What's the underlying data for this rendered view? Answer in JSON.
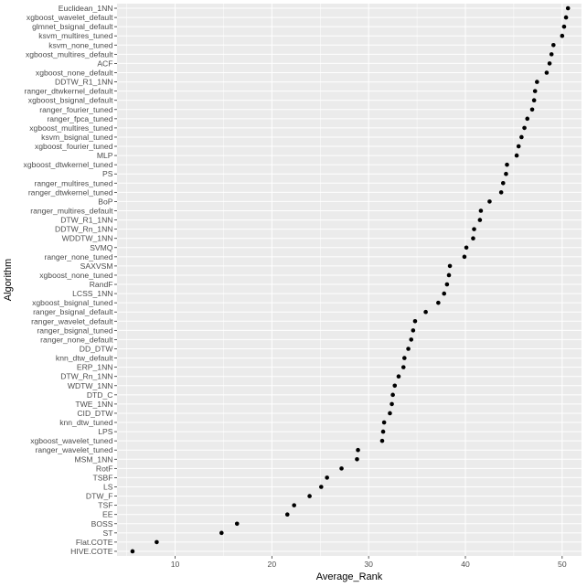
{
  "chart_data": {
    "type": "scatter",
    "xlabel": "Average_Rank",
    "ylabel": "Algorithm",
    "xlim": [
      4,
      52
    ],
    "x_ticks": [
      10,
      20,
      30,
      40,
      50
    ],
    "grid": true,
    "legend": "none",
    "colors": {
      "panel": "#ebebeb",
      "grid_major": "#ffffff",
      "point": "#000000",
      "tick_text": "#4d4d4d"
    },
    "points": [
      {
        "label": "Euclidean_1NN",
        "x": 50.6
      },
      {
        "label": "xgboost_wavelet_default",
        "x": 50.4
      },
      {
        "label": "glmnet_bsignal_default",
        "x": 50.2
      },
      {
        "label": "ksvm_multires_tuned",
        "x": 50.0
      },
      {
        "label": "ksvm_none_tuned",
        "x": 49.1
      },
      {
        "label": "xgboost_multires_default",
        "x": 48.9
      },
      {
        "label": "ACF",
        "x": 48.7
      },
      {
        "label": "xgboost_none_default",
        "x": 48.4
      },
      {
        "label": "DDTW_R1_1NN",
        "x": 47.4
      },
      {
        "label": "ranger_dtwkernel_default",
        "x": 47.2
      },
      {
        "label": "xgboost_bsignal_default",
        "x": 47.1
      },
      {
        "label": "ranger_fourier_tuned",
        "x": 46.9
      },
      {
        "label": "ranger_fpca_tuned",
        "x": 46.4
      },
      {
        "label": "xgboost_multires_tuned",
        "x": 46.1
      },
      {
        "label": "ksvm_bsignal_tuned",
        "x": 45.8
      },
      {
        "label": "xgboost_fourier_tuned",
        "x": 45.5
      },
      {
        "label": "MLP",
        "x": 45.3
      },
      {
        "label": "xgboost_dtwkernel_tuned",
        "x": 44.3
      },
      {
        "label": "PS",
        "x": 44.2
      },
      {
        "label": "ranger_multires_tuned",
        "x": 43.9
      },
      {
        "label": "ranger_dtwkernel_tuned",
        "x": 43.7
      },
      {
        "label": "BoP",
        "x": 42.5
      },
      {
        "label": "ranger_multires_default",
        "x": 41.6
      },
      {
        "label": "DTW_R1_1NN",
        "x": 41.5
      },
      {
        "label": "DDTW_Rn_1NN",
        "x": 40.9
      },
      {
        "label": "WDDTW_1NN",
        "x": 40.8
      },
      {
        "label": "SVMQ",
        "x": 40.1
      },
      {
        "label": "ranger_none_tuned",
        "x": 39.9
      },
      {
        "label": "SAXVSM",
        "x": 38.4
      },
      {
        "label": "xgboost_none_tuned",
        "x": 38.3
      },
      {
        "label": "RandF",
        "x": 38.1
      },
      {
        "label": "LCSS_1NN",
        "x": 37.8
      },
      {
        "label": "xgboost_bsignal_tuned",
        "x": 37.2
      },
      {
        "label": "ranger_bsignal_default",
        "x": 35.9
      },
      {
        "label": "ranger_wavelet_default",
        "x": 34.8
      },
      {
        "label": "ranger_bsignal_tuned",
        "x": 34.6
      },
      {
        "label": "ranger_none_default",
        "x": 34.4
      },
      {
        "label": "DD_DTW",
        "x": 34.1
      },
      {
        "label": "knn_dtw_default",
        "x": 33.7
      },
      {
        "label": "ERP_1NN",
        "x": 33.6
      },
      {
        "label": "DTW_Rn_1NN",
        "x": 33.1
      },
      {
        "label": "WDTW_1NN",
        "x": 32.7
      },
      {
        "label": "DTD_C",
        "x": 32.5
      },
      {
        "label": "TWE_1NN",
        "x": 32.4
      },
      {
        "label": "CID_DTW",
        "x": 32.2
      },
      {
        "label": "knn_dtw_tuned",
        "x": 31.6
      },
      {
        "label": "LPS",
        "x": 31.5
      },
      {
        "label": "xgboost_wavelet_tuned",
        "x": 31.4
      },
      {
        "label": "ranger_wavelet_tuned",
        "x": 28.9
      },
      {
        "label": "MSM_1NN",
        "x": 28.8
      },
      {
        "label": "RotF",
        "x": 27.2
      },
      {
        "label": "TSBF",
        "x": 25.7
      },
      {
        "label": "LS",
        "x": 25.1
      },
      {
        "label": "DTW_F",
        "x": 23.9
      },
      {
        "label": "TSF",
        "x": 22.3
      },
      {
        "label": "EE",
        "x": 21.6
      },
      {
        "label": "BOSS",
        "x": 16.4
      },
      {
        "label": "ST",
        "x": 14.8
      },
      {
        "label": "Flat.COTE",
        "x": 8.1
      },
      {
        "label": "HIVE.COTE",
        "x": 5.6
      }
    ]
  }
}
